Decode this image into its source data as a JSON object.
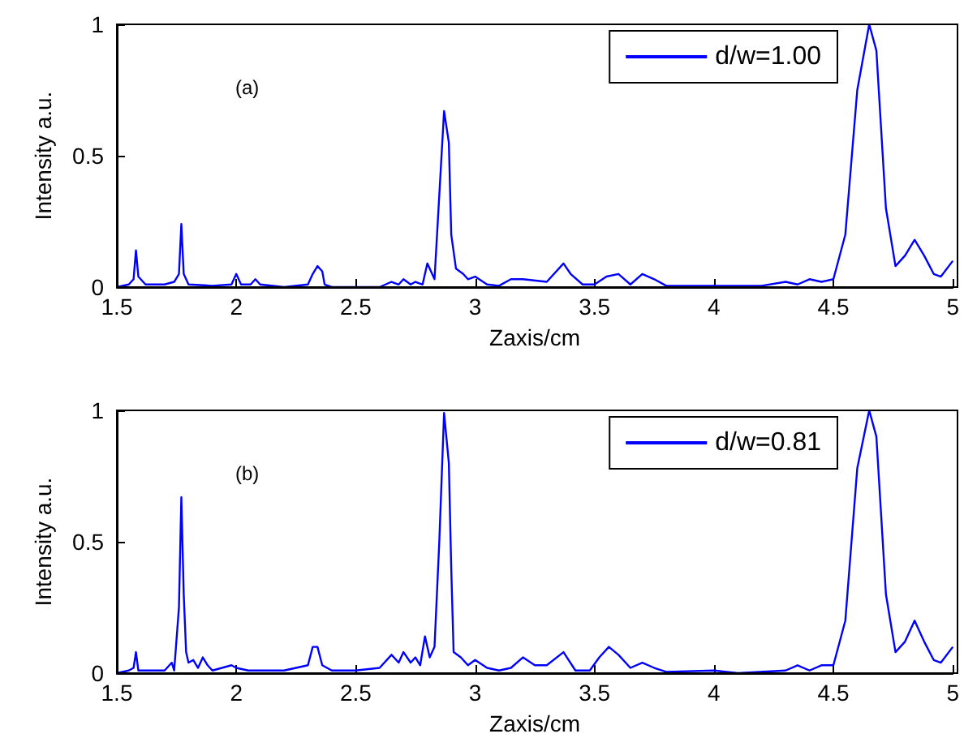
{
  "chart_data": [
    {
      "type": "line",
      "xlabel": "Zaxis/cm",
      "ylabel": "Intensity a.u.",
      "annotations": [
        "(a)"
      ],
      "xlim": [
        1.5,
        5
      ],
      "xticks": [
        1.5,
        2,
        2.5,
        3,
        3.5,
        4,
        4.5,
        5
      ],
      "ylim": [
        0,
        1
      ],
      "yticks": [
        0,
        0.5,
        1
      ],
      "legend": "top right",
      "grid": false,
      "marker": "none",
      "x": [
        1.5,
        1.55,
        1.57,
        1.58,
        1.59,
        1.62,
        1.7,
        1.74,
        1.76,
        1.77,
        1.78,
        1.8,
        1.9,
        1.98,
        2.0,
        2.02,
        2.06,
        2.08,
        2.1,
        2.2,
        2.3,
        2.32,
        2.34,
        2.36,
        2.37,
        2.4,
        2.6,
        2.65,
        2.68,
        2.7,
        2.73,
        2.75,
        2.78,
        2.8,
        2.83,
        2.85,
        2.87,
        2.89,
        2.9,
        2.92,
        2.95,
        2.97,
        3.0,
        3.05,
        3.1,
        3.15,
        3.2,
        3.3,
        3.37,
        3.4,
        3.45,
        3.5,
        3.55,
        3.6,
        3.65,
        3.7,
        3.75,
        3.8,
        4.0,
        4.2,
        4.3,
        4.35,
        4.4,
        4.45,
        4.5,
        4.55,
        4.6,
        4.65,
        4.68,
        4.72,
        4.76,
        4.8,
        4.84,
        4.88,
        4.92,
        4.95,
        5.0
      ],
      "series": [
        {
          "name": "d/w=1.00",
          "color": "#0000ff",
          "values": [
            0,
            0.01,
            0.03,
            0.14,
            0.04,
            0.01,
            0.01,
            0.02,
            0.05,
            0.24,
            0.05,
            0.01,
            0.005,
            0.01,
            0.05,
            0.01,
            0.01,
            0.03,
            0.01,
            0,
            0.01,
            0.05,
            0.08,
            0.06,
            0.01,
            0,
            0,
            0.02,
            0.01,
            0.03,
            0.01,
            0.02,
            0.01,
            0.09,
            0.03,
            0.35,
            0.67,
            0.55,
            0.2,
            0.07,
            0.05,
            0.03,
            0.04,
            0.01,
            0.005,
            0.03,
            0.03,
            0.02,
            0.09,
            0.05,
            0.01,
            0.01,
            0.04,
            0.05,
            0.01,
            0.05,
            0.03,
            0.005,
            0.005,
            0.005,
            0.02,
            0.01,
            0.03,
            0.02,
            0.03,
            0.2,
            0.75,
            1.0,
            0.9,
            0.3,
            0.08,
            0.12,
            0.18,
            0.12,
            0.05,
            0.04,
            0.1
          ]
        }
      ]
    },
    {
      "type": "line",
      "xlabel": "Zaxis/cm",
      "ylabel": "Intensity a.u.",
      "annotations": [
        "(b)"
      ],
      "xlim": [
        1.5,
        5
      ],
      "xticks": [
        1.5,
        2,
        2.5,
        3,
        3.5,
        4,
        4.5,
        5
      ],
      "ylim": [
        0,
        1
      ],
      "yticks": [
        0,
        0.5,
        1
      ],
      "legend": "top right",
      "grid": false,
      "marker": "none",
      "x": [
        1.5,
        1.55,
        1.57,
        1.58,
        1.59,
        1.65,
        1.7,
        1.73,
        1.74,
        1.76,
        1.77,
        1.78,
        1.79,
        1.8,
        1.82,
        1.84,
        1.86,
        1.88,
        1.9,
        1.98,
        2.0,
        2.05,
        2.1,
        2.2,
        2.3,
        2.32,
        2.34,
        2.36,
        2.4,
        2.5,
        2.6,
        2.65,
        2.68,
        2.7,
        2.73,
        2.75,
        2.77,
        2.79,
        2.81,
        2.83,
        2.85,
        2.87,
        2.89,
        2.9,
        2.91,
        2.94,
        2.97,
        3.0,
        3.05,
        3.1,
        3.15,
        3.2,
        3.25,
        3.3,
        3.37,
        3.42,
        3.48,
        3.52,
        3.56,
        3.6,
        3.65,
        3.7,
        3.75,
        3.8,
        4.0,
        4.1,
        4.3,
        4.35,
        4.4,
        4.45,
        4.5,
        4.55,
        4.6,
        4.65,
        4.68,
        4.72,
        4.76,
        4.8,
        4.84,
        4.88,
        4.92,
        4.95,
        5.0
      ],
      "series": [
        {
          "name": "d/w=0.81",
          "color": "#0000ff",
          "values": [
            0,
            0.01,
            0.02,
            0.08,
            0.01,
            0.01,
            0.01,
            0.04,
            0.01,
            0.25,
            0.67,
            0.3,
            0.08,
            0.04,
            0.05,
            0.02,
            0.06,
            0.03,
            0.01,
            0.03,
            0.02,
            0.01,
            0.01,
            0.01,
            0.03,
            0.1,
            0.1,
            0.03,
            0.01,
            0.01,
            0.02,
            0.07,
            0.04,
            0.08,
            0.04,
            0.06,
            0.03,
            0.14,
            0.06,
            0.1,
            0.5,
            0.99,
            0.8,
            0.4,
            0.08,
            0.06,
            0.03,
            0.05,
            0.02,
            0.01,
            0.02,
            0.06,
            0.03,
            0.03,
            0.08,
            0.01,
            0.01,
            0.06,
            0.1,
            0.07,
            0.02,
            0.04,
            0.02,
            0.005,
            0.01,
            0,
            0.01,
            0.03,
            0.01,
            0.03,
            0.03,
            0.2,
            0.78,
            1.0,
            0.9,
            0.3,
            0.08,
            0.12,
            0.2,
            0.12,
            0.05,
            0.04,
            0.1
          ]
        }
      ]
    }
  ]
}
